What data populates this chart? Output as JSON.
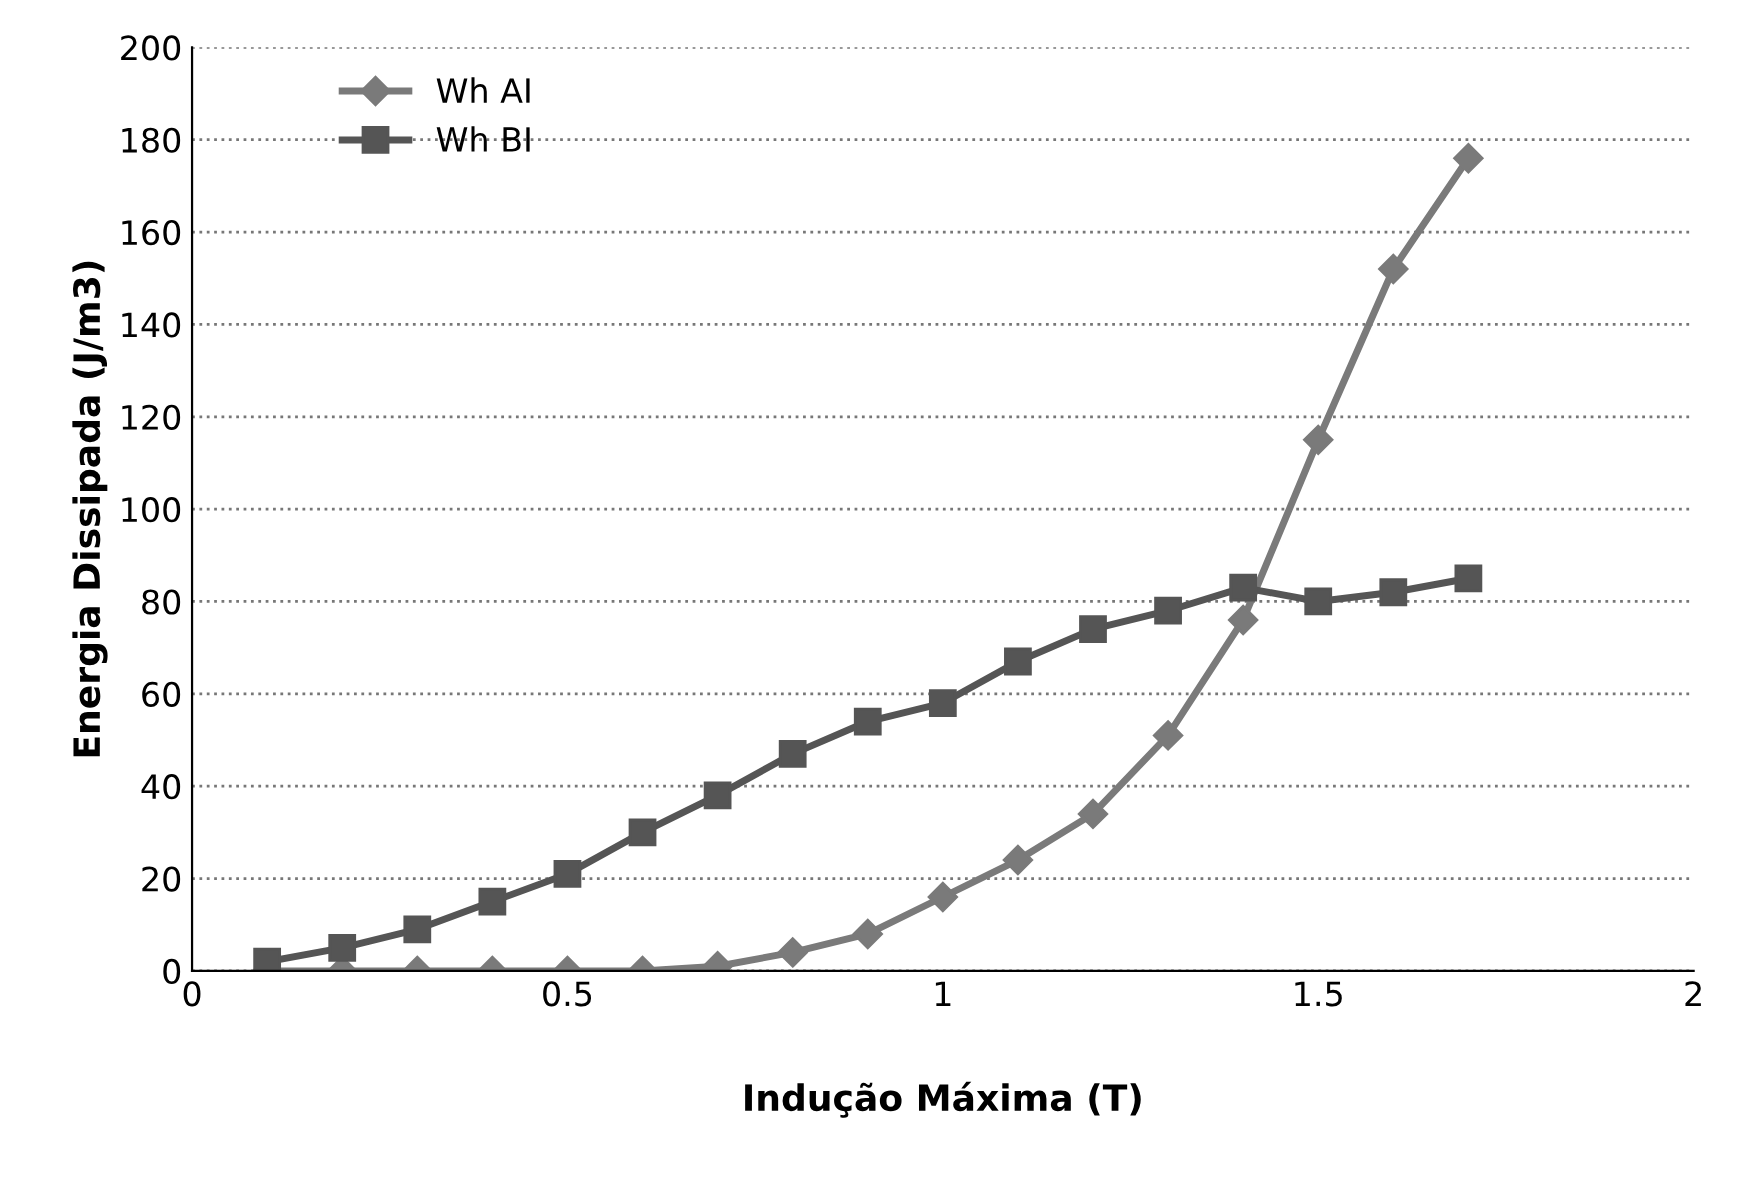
{
  "chart_data": {
    "type": "line",
    "xlabel": "Indução Máxima (T)",
    "ylabel": "Energia Dissipada (J/m3)",
    "x": [
      0.1,
      0.2,
      0.3,
      0.4,
      0.5,
      0.6,
      0.7,
      0.8,
      0.9,
      1.0,
      1.1,
      1.2,
      1.3,
      1.4,
      1.5,
      1.6,
      1.7
    ],
    "series": [
      {
        "name": "Wh AI",
        "color": "#7a7a7a",
        "marker": "diamond",
        "values": [
          0,
          0,
          0,
          0,
          0,
          0,
          1,
          4,
          8,
          16,
          24,
          34,
          51,
          76,
          115,
          152,
          176
        ]
      },
      {
        "name": "Wh BI",
        "color": "#555555",
        "marker": "square",
        "values": [
          2,
          5,
          9,
          15,
          21,
          30,
          38,
          47,
          54,
          58,
          67,
          74,
          78,
          83,
          80,
          82,
          85
        ]
      }
    ],
    "xlim": [
      0,
      2
    ],
    "xticks": [
      0,
      0.5,
      1,
      1.5,
      2
    ],
    "ylim": [
      0,
      200
    ],
    "yticks": [
      0,
      20,
      40,
      60,
      80,
      100,
      120,
      140,
      160,
      180,
      200
    ],
    "grid": "y",
    "legend": "top left",
    "line_style": "solid"
  }
}
